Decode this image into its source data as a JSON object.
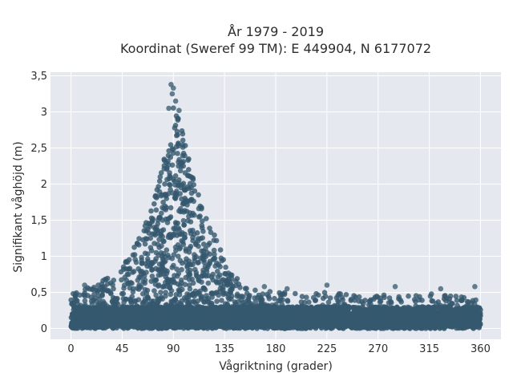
{
  "chart_data": {
    "type": "scatter",
    "title_line1": "År 1979 - 2019",
    "title_line2": "Koordinat (Sweref 99 TM): E 449904, N 6177072",
    "xlabel": "Vågriktning (grader)",
    "ylabel": "Signifikant våghöjd (m)",
    "xlim": [
      -18,
      378
    ],
    "ylim": [
      -0.15,
      3.55
    ],
    "xticks": [
      0,
      45,
      90,
      135,
      180,
      225,
      270,
      315,
      360
    ],
    "xtick_labels": [
      "0",
      "45",
      "90",
      "135",
      "180",
      "225",
      "270",
      "315",
      "360"
    ],
    "yticks": [
      0,
      0.5,
      1,
      1.5,
      2,
      2.5,
      3,
      3.5
    ],
    "ytick_labels": [
      "0",
      "0,5",
      "1",
      "1,5",
      "2",
      "2,5",
      "3",
      "3,5"
    ],
    "grid": true,
    "plot_background": "#e5e8ef",
    "marker_color": "#35586e",
    "envelope": {
      "x": [
        0,
        10,
        20,
        30,
        40,
        45,
        50,
        55,
        60,
        65,
        70,
        75,
        80,
        85,
        88,
        90,
        92,
        95,
        100,
        105,
        110,
        115,
        120,
        125,
        130,
        135,
        140,
        145,
        150,
        160,
        170,
        180,
        200,
        225,
        250,
        270,
        300,
        315,
        340,
        360
      ],
      "y": [
        0.48,
        0.55,
        0.6,
        0.68,
        0.8,
        0.88,
        0.98,
        1.12,
        1.25,
        1.42,
        1.65,
        1.9,
        2.22,
        2.6,
        3.0,
        3.15,
        3.05,
        2.9,
        2.6,
        2.25,
        1.95,
        1.72,
        1.55,
        1.35,
        1.15,
        0.95,
        0.82,
        0.72,
        0.62,
        0.55,
        0.52,
        0.5,
        0.5,
        0.5,
        0.48,
        0.48,
        0.45,
        0.48,
        0.45,
        0.4
      ]
    },
    "highlight_points": [
      {
        "x": 88,
        "y": 3.38
      },
      {
        "x": 90,
        "y": 3.33
      },
      {
        "x": 89,
        "y": 3.25
      },
      {
        "x": 92,
        "y": 3.15
      },
      {
        "x": 86,
        "y": 3.05
      },
      {
        "x": 95,
        "y": 3.02
      },
      {
        "x": 12,
        "y": 0.6
      },
      {
        "x": 30,
        "y": 0.68
      },
      {
        "x": 225,
        "y": 0.6
      },
      {
        "x": 285,
        "y": 0.58
      },
      {
        "x": 325,
        "y": 0.55
      },
      {
        "x": 355,
        "y": 0.58
      },
      {
        "x": 190,
        "y": 0.55
      },
      {
        "x": 170,
        "y": 0.58
      }
    ]
  }
}
